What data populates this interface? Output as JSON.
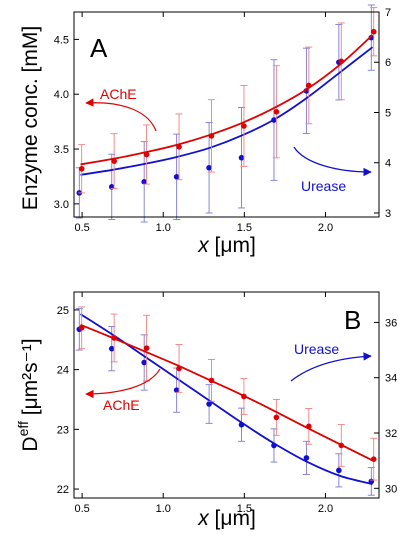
{
  "colors": {
    "ache": "#e00000",
    "urease": "#1010d0",
    "ache_err": "#f08080",
    "urease_err": "#7a7ad8"
  },
  "chart_data": [
    {
      "type": "scatter",
      "panel_label": "A",
      "xlabel_var": "x",
      "xlabel_unit": "[μm]",
      "ylabel_left": "Enzyme conc. [mM]",
      "ylabel_right": "",
      "xlim": [
        0.45,
        2.33
      ],
      "ylim_left": [
        2.88,
        4.75
      ],
      "ylim_right": [
        2.92,
        7.0
      ],
      "x_ticks": [
        "0.5",
        "1.0",
        "1.5",
        "2.0"
      ],
      "y_ticks_left": [
        "3.0",
        "3.5",
        "4.0",
        "4.5"
      ],
      "y_ticks_right": [
        "3",
        "4",
        "5",
        "6",
        "7"
      ],
      "grid": false,
      "series": [
        {
          "name": "AChE",
          "axis": "left",
          "x": [
            0.49,
            0.69,
            0.89,
            1.09,
            1.29,
            1.49,
            1.69,
            1.89,
            2.09,
            2.29
          ],
          "y": [
            3.32,
            3.39,
            3.45,
            3.52,
            3.62,
            3.71,
            3.84,
            4.08,
            4.3,
            4.57
          ],
          "err": [
            0.22,
            0.25,
            0.27,
            0.3,
            0.33,
            0.37,
            0.42,
            0.35,
            0.35,
            0.22
          ],
          "fit_y": [
            3.36,
            3.41,
            3.47,
            3.54,
            3.63,
            3.74,
            3.88,
            4.05,
            4.27,
            4.54
          ]
        },
        {
          "name": "Urease",
          "axis": "right",
          "x": [
            0.49,
            0.69,
            0.89,
            1.09,
            1.29,
            1.49,
            1.69,
            1.89,
            2.09,
            2.29
          ],
          "y": [
            3.4,
            3.52,
            3.62,
            3.72,
            3.9,
            4.1,
            4.85,
            5.43,
            6.0,
            6.49
          ],
          "err": [
            0.5,
            0.65,
            0.8,
            0.85,
            0.9,
            1.0,
            1.2,
            0.85,
            0.75,
            0.65
          ],
          "fit_y": [
            3.76,
            3.86,
            3.98,
            4.12,
            4.3,
            4.55,
            4.87,
            5.3,
            5.8,
            6.3
          ]
        }
      ],
      "annotations": [
        "AChE",
        "Urease"
      ]
    },
    {
      "type": "scatter",
      "panel_label": "B",
      "xlabel_var": "x",
      "xlabel_unit": "[μm]",
      "ylabel_left_prefix": "D",
      "ylabel_left_sup": "eff",
      "ylabel_left_units": "[μm²s⁻¹]",
      "ylabel_right": "",
      "xlim": [
        0.45,
        2.33
      ],
      "ylim_left": [
        21.85,
        25.3
      ],
      "ylim_right": [
        29.65,
        37.1
      ],
      "x_ticks": [
        "0.5",
        "1.0",
        "1.5",
        "2.0"
      ],
      "y_ticks_left": [
        "22",
        "23",
        "24",
        "25"
      ],
      "y_ticks_right": [
        "30",
        "32",
        "34",
        "36"
      ],
      "grid": false,
      "series": [
        {
          "name": "AChE",
          "axis": "left",
          "x": [
            0.49,
            0.69,
            0.89,
            1.09,
            1.29,
            1.49,
            1.69,
            1.89,
            2.09,
            2.29
          ],
          "y": [
            24.7,
            24.53,
            24.36,
            24.02,
            23.82,
            23.55,
            23.2,
            23.05,
            22.73,
            22.5
          ],
          "err": [
            0.35,
            0.4,
            0.55,
            0.4,
            0.35,
            0.3,
            0.3,
            0.3,
            0.35,
            0.35
          ],
          "fit_y": [
            24.75,
            24.53,
            24.3,
            24.07,
            23.82,
            23.57,
            23.3,
            23.02,
            22.75,
            22.48
          ]
        },
        {
          "name": "Urease",
          "axis": "right",
          "x": [
            0.49,
            0.69,
            0.89,
            1.09,
            1.29,
            1.49,
            1.69,
            1.89,
            2.09,
            2.29
          ],
          "y": [
            35.75,
            35.05,
            34.55,
            33.55,
            33.05,
            32.3,
            31.55,
            31.1,
            30.65,
            30.25
          ],
          "err": [
            0.75,
            0.8,
            1.0,
            0.8,
            0.7,
            0.6,
            0.6,
            0.6,
            0.6,
            0.5
          ],
          "fit_y": [
            36.3,
            35.55,
            34.75,
            33.95,
            33.15,
            32.35,
            31.6,
            30.95,
            30.45,
            30.15
          ]
        }
      ],
      "annotations": [
        "AChE",
        "Urease"
      ]
    }
  ]
}
